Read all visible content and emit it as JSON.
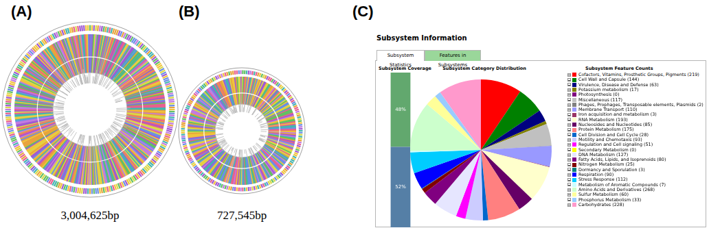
{
  "panels": [
    {
      "label": "(A)",
      "caption": "3,004,625bp"
    },
    {
      "label": "(B)",
      "caption": "727,545bp"
    },
    {
      "label": "(C)",
      "heading": "Subsystem Information",
      "tabs": [
        "Subsystem Statistics",
        "Features in Subsystems"
      ],
      "legend_title": "Subsystem Feature Counts"
    }
  ],
  "chart_data": [
    {
      "type": "bar",
      "title": "Subsystem Coverage",
      "stacked": true,
      "categories": [
        null
      ],
      "series": [
        {
          "color": "#557fa6",
          "values": [
            52
          ],
          "value_labels": [
            "52%"
          ]
        },
        {
          "color": "#62a86e",
          "values": [
            48
          ],
          "value_labels": [
            "48%"
          ]
        }
      ],
      "ylim": [
        0,
        100
      ],
      "grid": false,
      "tick_labels": false,
      "data_labels": true
    },
    {
      "type": "pie",
      "title": "Subsystem Category Distribution",
      "legend": "right",
      "categories": [
        "Cofactors, Vitamins, Prosthetic Groups, Pigments (219)",
        "Cell Wall and Capsule (144)",
        "Virulence, Disease and Defense (63)",
        "Potassium metabolism (17)",
        "Photosynthesis (0)",
        "Miscellaneous (117)",
        "Phages, Prophages, Transposable elements, Plasmids (2)",
        "Membrane Transport (110)",
        "Iron acquisition and metabolism (3)",
        "RNA Metabolism (193)",
        "Nucleosides and Nucleotides (85)",
        "Protein Metabolism (175)",
        "Cell Division and Cell Cycle (28)",
        "Motility and Chemotaxis (93)",
        "Regulation and Cell signaling (51)",
        "Secondary Metabolism (0)",
        "DNA Metabolism (127)",
        "Fatty Acids, Lipids, and Isoprenoids (80)",
        "Nitrogen Metabolism (25)",
        "Dormancy and Sporulation (3)",
        "Respiration (90)",
        "Stress Response (112)",
        "Metabolism of Aromatic Compounds (7)",
        "Amino Acids and Derivatives (268)",
        "Sulfur Metabolism (60)",
        "Phosphorus Metabolism (33)",
        "Carbohydrates (228)"
      ],
      "values": [
        219,
        144,
        63,
        17,
        0,
        117,
        2,
        110,
        3,
        193,
        85,
        175,
        28,
        93,
        51,
        0,
        127,
        80,
        25,
        3,
        90,
        112,
        7,
        268,
        60,
        33,
        228
      ],
      "colors": [
        "#ff0000",
        "#008000",
        "#000080",
        "#808000",
        "#800080",
        "#c0c0c0",
        "#808080",
        "#9999ff",
        "#993366",
        "#ffffcc",
        "#660066",
        "#ff8080",
        "#0066cc",
        "#ccccff",
        "#ff00ff",
        "#ffff00",
        "#e6e6ff",
        "#800080",
        "#800000",
        "#008080",
        "#0000ff",
        "#00ccff",
        "#ccffff",
        "#ccffcc",
        "#ffff99",
        "#99ccff",
        "#ff99cc"
      ],
      "data_labels": false
    }
  ]
}
